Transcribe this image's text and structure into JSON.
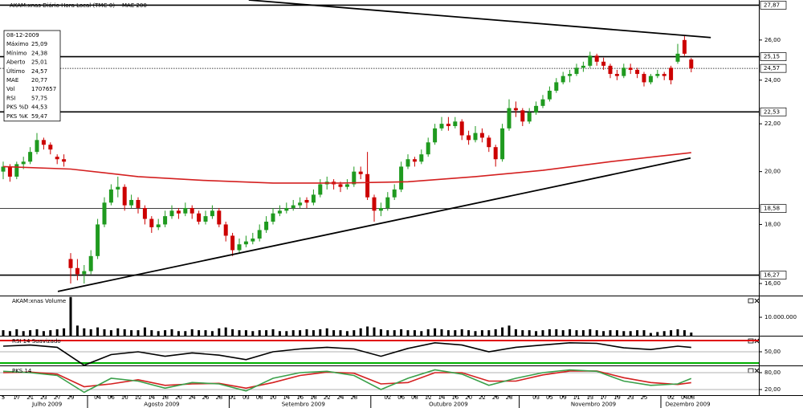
{
  "chart_data": [
    {
      "type": "candlestick",
      "title": "AKAM:xnas Diário Hora Local (TMC-0)",
      "log": true,
      "ylim": [
        15.62,
        28.16
      ],
      "yticks": [
        {
          "value": 26,
          "label": "26,00"
        },
        {
          "value": 24,
          "label": "24,00"
        },
        {
          "value": 22,
          "label": "22,00"
        },
        {
          "value": 20,
          "label": "20,00"
        },
        {
          "value": 18,
          "label": "18,00"
        },
        {
          "value": 16,
          "label": "16,00"
        }
      ],
      "up_color": "#1f9a1f",
      "down_color": "#cc0000",
      "categories": [
        "5",
        null,
        "17",
        null,
        "21",
        null,
        "23",
        null,
        "27",
        null,
        "29",
        null,
        null,
        null,
        "04",
        null,
        "06",
        null,
        "10",
        null,
        "12",
        null,
        "14",
        null,
        "18",
        null,
        "20",
        null,
        "24",
        null,
        "26",
        null,
        "28",
        null,
        "01",
        null,
        "03",
        null,
        "08",
        null,
        "10",
        null,
        "14",
        null,
        "16",
        null,
        "18",
        null,
        "22",
        null,
        "24",
        null,
        "28",
        null,
        null,
        null,
        null,
        "02",
        null,
        "06",
        null,
        "08",
        null,
        "12",
        null,
        "14",
        null,
        "16",
        null,
        "20",
        null,
        "22",
        null,
        "26",
        null,
        "28",
        null,
        null,
        null,
        "03",
        null,
        "05",
        null,
        "09",
        null,
        "11",
        null,
        "13",
        null,
        "17",
        null,
        "19",
        null,
        "23",
        null,
        "25",
        null,
        null,
        null,
        "02",
        null,
        "04",
        "08"
      ],
      "months": [
        {
          "label": "Julho 2009",
          "start": 0
        },
        {
          "label": "Agosto 2009",
          "start": 13
        },
        {
          "label": "Setembro 2009",
          "start": 34
        },
        {
          "label": "Outubro 2009",
          "start": 55
        },
        {
          "label": "Novembro 2009",
          "start": 77
        },
        {
          "label": "Dezembro 2009",
          "start": 98
        }
      ],
      "candles": [
        [
          20.0,
          20.4,
          19.7,
          20.2
        ],
        [
          20.2,
          20.3,
          19.6,
          19.8
        ],
        [
          19.8,
          20.4,
          19.7,
          20.3
        ],
        [
          20.3,
          20.6,
          20.1,
          20.4
        ],
        [
          20.4,
          21.0,
          20.3,
          20.8
        ],
        [
          20.8,
          21.6,
          20.7,
          21.3
        ],
        [
          21.3,
          21.4,
          20.9,
          21.1
        ],
        [
          21.1,
          21.2,
          20.7,
          20.9
        ],
        [
          20.6,
          20.7,
          20.3,
          20.5
        ],
        [
          20.5,
          20.7,
          20.2,
          20.4
        ],
        [
          16.8,
          17.0,
          16.0,
          16.5
        ],
        [
          16.5,
          16.8,
          16.1,
          16.3
        ],
        [
          16.3,
          16.6,
          16.0,
          16.4
        ],
        [
          16.4,
          17.1,
          16.3,
          16.9
        ],
        [
          16.9,
          18.2,
          16.8,
          18.0
        ],
        [
          18.0,
          19.0,
          17.9,
          18.8
        ],
        [
          18.8,
          19.5,
          18.7,
          19.3
        ],
        [
          19.3,
          19.8,
          19.0,
          19.4
        ],
        [
          19.4,
          19.5,
          18.5,
          18.7
        ],
        [
          18.7,
          19.1,
          18.6,
          18.9
        ],
        [
          18.9,
          19.0,
          18.4,
          18.6
        ],
        [
          18.6,
          18.7,
          18.0,
          18.2
        ],
        [
          18.2,
          18.3,
          17.7,
          17.9
        ],
        [
          17.9,
          18.2,
          17.8,
          18.0
        ],
        [
          18.0,
          18.5,
          17.9,
          18.3
        ],
        [
          18.3,
          18.7,
          18.2,
          18.5
        ],
        [
          18.5,
          18.6,
          18.2,
          18.4
        ],
        [
          18.4,
          18.8,
          18.3,
          18.6
        ],
        [
          18.6,
          18.7,
          18.2,
          18.4
        ],
        [
          18.4,
          18.5,
          18.0,
          18.1
        ],
        [
          18.1,
          18.5,
          18.0,
          18.3
        ],
        [
          18.3,
          18.7,
          18.2,
          18.5
        ],
        [
          18.5,
          18.6,
          17.9,
          18.0
        ],
        [
          18.0,
          18.1,
          17.4,
          17.6
        ],
        [
          17.6,
          17.7,
          16.9,
          17.1
        ],
        [
          17.1,
          17.5,
          17.0,
          17.3
        ],
        [
          17.3,
          17.6,
          17.2,
          17.4
        ],
        [
          17.4,
          17.7,
          17.3,
          17.5
        ],
        [
          17.5,
          18.0,
          17.4,
          17.8
        ],
        [
          17.8,
          18.3,
          17.7,
          18.1
        ],
        [
          18.1,
          18.6,
          18.0,
          18.4
        ],
        [
          18.4,
          18.7,
          18.3,
          18.5
        ],
        [
          18.5,
          18.8,
          18.4,
          18.6
        ],
        [
          18.6,
          18.9,
          18.5,
          18.7
        ],
        [
          18.7,
          19.0,
          18.6,
          18.8
        ],
        [
          18.9,
          19.0,
          18.6,
          18.8
        ],
        [
          18.8,
          19.3,
          18.7,
          19.1
        ],
        [
          19.1,
          19.7,
          19.0,
          19.5
        ],
        [
          19.5,
          19.8,
          19.3,
          19.6
        ],
        [
          19.6,
          19.7,
          19.3,
          19.5
        ],
        [
          19.5,
          19.6,
          19.2,
          19.4
        ],
        [
          19.4,
          19.7,
          19.3,
          19.5
        ],
        [
          19.5,
          20.2,
          19.4,
          20.0
        ],
        [
          20.0,
          20.2,
          19.7,
          19.9
        ],
        [
          19.9,
          20.8,
          18.9,
          19.0
        ],
        [
          19.0,
          19.1,
          18.1,
          18.5
        ],
        [
          18.5,
          18.8,
          18.3,
          18.6
        ],
        [
          18.6,
          19.2,
          18.5,
          19.0
        ],
        [
          19.0,
          19.5,
          18.9,
          19.3
        ],
        [
          19.3,
          20.4,
          19.2,
          20.2
        ],
        [
          20.2,
          20.7,
          20.1,
          20.5
        ],
        [
          20.5,
          20.6,
          20.2,
          20.4
        ],
        [
          20.4,
          20.9,
          20.3,
          20.7
        ],
        [
          20.7,
          21.4,
          20.6,
          21.2
        ],
        [
          21.2,
          22.0,
          21.1,
          21.8
        ],
        [
          21.8,
          22.3,
          21.7,
          22.0
        ],
        [
          22.0,
          22.3,
          21.7,
          21.9
        ],
        [
          21.9,
          22.3,
          21.8,
          22.1
        ],
        [
          22.1,
          22.2,
          21.3,
          21.5
        ],
        [
          21.5,
          21.7,
          21.1,
          21.3
        ],
        [
          21.3,
          21.9,
          21.2,
          21.6
        ],
        [
          21.6,
          21.8,
          21.2,
          21.4
        ],
        [
          21.4,
          21.5,
          20.8,
          21.0
        ],
        [
          21.0,
          21.1,
          20.2,
          20.5
        ],
        [
          20.5,
          22.0,
          20.4,
          21.8
        ],
        [
          21.8,
          23.1,
          21.7,
          22.7
        ],
        [
          22.7,
          23.0,
          22.3,
          22.6
        ],
        [
          22.6,
          22.7,
          21.9,
          22.1
        ],
        [
          22.1,
          22.7,
          22.0,
          22.5
        ],
        [
          22.5,
          23.0,
          22.4,
          22.8
        ],
        [
          22.8,
          23.3,
          22.7,
          23.1
        ],
        [
          23.1,
          23.7,
          23.0,
          23.5
        ],
        [
          23.5,
          24.1,
          23.4,
          23.9
        ],
        [
          23.9,
          24.4,
          23.8,
          24.2
        ],
        [
          24.2,
          24.5,
          23.9,
          24.3
        ],
        [
          24.3,
          24.8,
          24.2,
          24.6
        ],
        [
          24.6,
          24.9,
          24.4,
          24.7
        ],
        [
          24.7,
          25.4,
          24.6,
          25.2
        ],
        [
          25.2,
          25.3,
          24.7,
          24.9
        ],
        [
          24.9,
          25.1,
          24.5,
          24.7
        ],
        [
          24.7,
          24.8,
          24.1,
          24.3
        ],
        [
          24.3,
          24.5,
          24.0,
          24.2
        ],
        [
          24.2,
          24.8,
          24.1,
          24.6
        ],
        [
          24.6,
          24.8,
          24.3,
          24.5
        ],
        [
          24.5,
          24.6,
          24.1,
          24.3
        ],
        [
          24.3,
          24.4,
          23.7,
          23.9
        ],
        [
          23.9,
          24.3,
          23.8,
          24.2
        ],
        [
          24.2,
          24.5,
          24.1,
          24.3
        ],
        [
          24.3,
          24.4,
          24.0,
          24.2
        ],
        [
          24.6,
          24.7,
          23.8,
          24.0
        ],
        [
          24.9,
          25.8,
          24.8,
          25.3
        ],
        [
          26.0,
          26.2,
          25.2,
          25.3
        ],
        [
          25.01,
          25.09,
          24.38,
          24.57
        ]
      ],
      "series": [
        {
          "name": "MAE 200",
          "color": "#d42020",
          "x": [
            0,
            10,
            20,
            30,
            40,
            50,
            60,
            70,
            80,
            90,
            102
          ],
          "values": [
            20.2,
            20.1,
            19.8,
            19.65,
            19.55,
            19.55,
            19.6,
            19.8,
            20.05,
            20.4,
            20.77
          ]
        }
      ],
      "levels": [
        {
          "value": 27.87,
          "label": "27,87",
          "style": "thick"
        },
        {
          "value": 25.15,
          "label": "25,15",
          "style": "thick"
        },
        {
          "value": 24.57,
          "label": "24,57",
          "style": "dotted"
        },
        {
          "value": 22.53,
          "label": "22,53",
          "style": "thick"
        },
        {
          "value": 18.58,
          "label": "18,58",
          "style": "thin"
        },
        {
          "value": 16.27,
          "label": "16,27",
          "style": "thick"
        }
      ],
      "trendlines": [
        {
          "x": [
            36.4,
            104.9
          ],
          "y": [
            28.16,
            26.13
          ]
        },
        {
          "x": [
            8.1,
            101.9
          ],
          "y": [
            15.75,
            20.55
          ]
        }
      ]
    },
    {
      "type": "bar",
      "title": "AKAM:xnas Volume",
      "color": "#000000",
      "ylim": [
        0,
        20900000
      ],
      "yticks": [
        {
          "value": 10000000,
          "label": "10.000.000"
        }
      ],
      "values": [
        3000000,
        2500000,
        3500000,
        2500000,
        3000000,
        3500000,
        2500000,
        3000000,
        3500000,
        4000000,
        21000000,
        5500000,
        4000000,
        3500000,
        4500000,
        3500000,
        3000000,
        4000000,
        3500000,
        3000000,
        3000000,
        4500000,
        3000000,
        2500000,
        3000000,
        3500000,
        2500000,
        2500000,
        3500000,
        3000000,
        3000000,
        2500000,
        4000000,
        4500000,
        3500000,
        3000000,
        3000000,
        2500000,
        3000000,
        3000000,
        3500000,
        2500000,
        2500000,
        3000000,
        3000000,
        3500000,
        3000000,
        3500000,
        4000000,
        3000000,
        3000000,
        2500000,
        3000000,
        4000000,
        5000000,
        4500000,
        3500000,
        3000000,
        3000000,
        3500000,
        3000000,
        3000000,
        2500000,
        3500000,
        4000000,
        3500000,
        3000000,
        3000000,
        3500000,
        3000000,
        2500000,
        3000000,
        3000000,
        3500000,
        4500000,
        5500000,
        3500000,
        3000000,
        3000000,
        2500000,
        3000000,
        3500000,
        3500000,
        3000000,
        3500000,
        3000000,
        3000000,
        3500000,
        3000000,
        2500000,
        3000000,
        3000000,
        2500000,
        2500000,
        3000000,
        3000000,
        1500000,
        2000000,
        2500000,
        3000000,
        3500000,
        3000000,
        1707657
      ]
    },
    {
      "type": "line",
      "title": "RSI 14 Suavizado",
      "ylim": [
        25.7,
        75.7
      ],
      "grid": true,
      "yticks": [
        {
          "value": 50,
          "label": "50,00"
        }
      ],
      "levels": [
        {
          "value": 70,
          "color": "#e00000"
        },
        {
          "value": 30,
          "color": "#00b000"
        }
      ],
      "series": [
        {
          "color": "#000000",
          "x": [
            0,
            4,
            8,
            12,
            16,
            20,
            24,
            28,
            32,
            36,
            40,
            44,
            48,
            52,
            56,
            60,
            64,
            68,
            72,
            76,
            80,
            84,
            88,
            92,
            96,
            100,
            102
          ],
          "values": [
            60,
            62,
            58,
            26,
            45,
            50,
            42,
            48,
            44,
            36,
            50,
            55,
            58,
            55,
            42,
            56,
            66,
            62,
            50,
            58,
            62,
            66,
            65,
            57,
            54,
            60,
            57.75
          ]
        }
      ]
    },
    {
      "type": "line",
      "title": "PKS 14",
      "ylim": [
        0,
        100
      ],
      "grid": true,
      "yticks": [
        {
          "value": 80,
          "label": "80,00"
        },
        {
          "value": 20,
          "label": "20,00"
        }
      ],
      "series": [
        {
          "color": "#d42020",
          "x": [
            0,
            4,
            8,
            12,
            16,
            20,
            24,
            28,
            32,
            36,
            40,
            44,
            48,
            52,
            56,
            60,
            64,
            68,
            72,
            76,
            80,
            84,
            88,
            92,
            96,
            100,
            102
          ],
          "values": [
            80,
            82,
            75,
            30,
            40,
            55,
            35,
            40,
            42,
            25,
            45,
            70,
            82,
            78,
            40,
            45,
            80,
            80,
            50,
            50,
            72,
            86,
            86,
            62,
            45,
            38,
            44.53
          ]
        },
        {
          "color": "#3aa04a",
          "x": [
            0,
            4,
            8,
            12,
            16,
            20,
            24,
            28,
            32,
            36,
            40,
            44,
            48,
            52,
            56,
            60,
            64,
            68,
            72,
            76,
            80,
            84,
            88,
            92,
            96,
            100,
            102
          ],
          "values": [
            85,
            80,
            70,
            10,
            60,
            50,
            25,
            45,
            40,
            15,
            60,
            80,
            85,
            70,
            20,
            60,
            90,
            75,
            35,
            60,
            80,
            90,
            85,
            50,
            35,
            40,
            59.47
          ]
        }
      ]
    }
  ],
  "info_box": {
    "date": "08-12-2009",
    "rows": [
      {
        "label": "Máximo",
        "value": "25,09"
      },
      {
        "label": "Mínimo",
        "value": "24,38"
      },
      {
        "label": "Aberto",
        "value": "25,01"
      },
      {
        "label": "Último",
        "value": "24,57",
        "color": "#1f9a1f"
      },
      {
        "label": "MAE",
        "value": "20,77",
        "color": "#d42020"
      },
      {
        "label": "Vol",
        "value": "1707657"
      },
      {
        "label": "RSI",
        "value": "57,75"
      },
      {
        "label": "PKS %D",
        "value": "44,53",
        "color": "#d42020"
      },
      {
        "label": "PKS %K",
        "value": "59,47",
        "color": "#3aa04a"
      }
    ]
  }
}
